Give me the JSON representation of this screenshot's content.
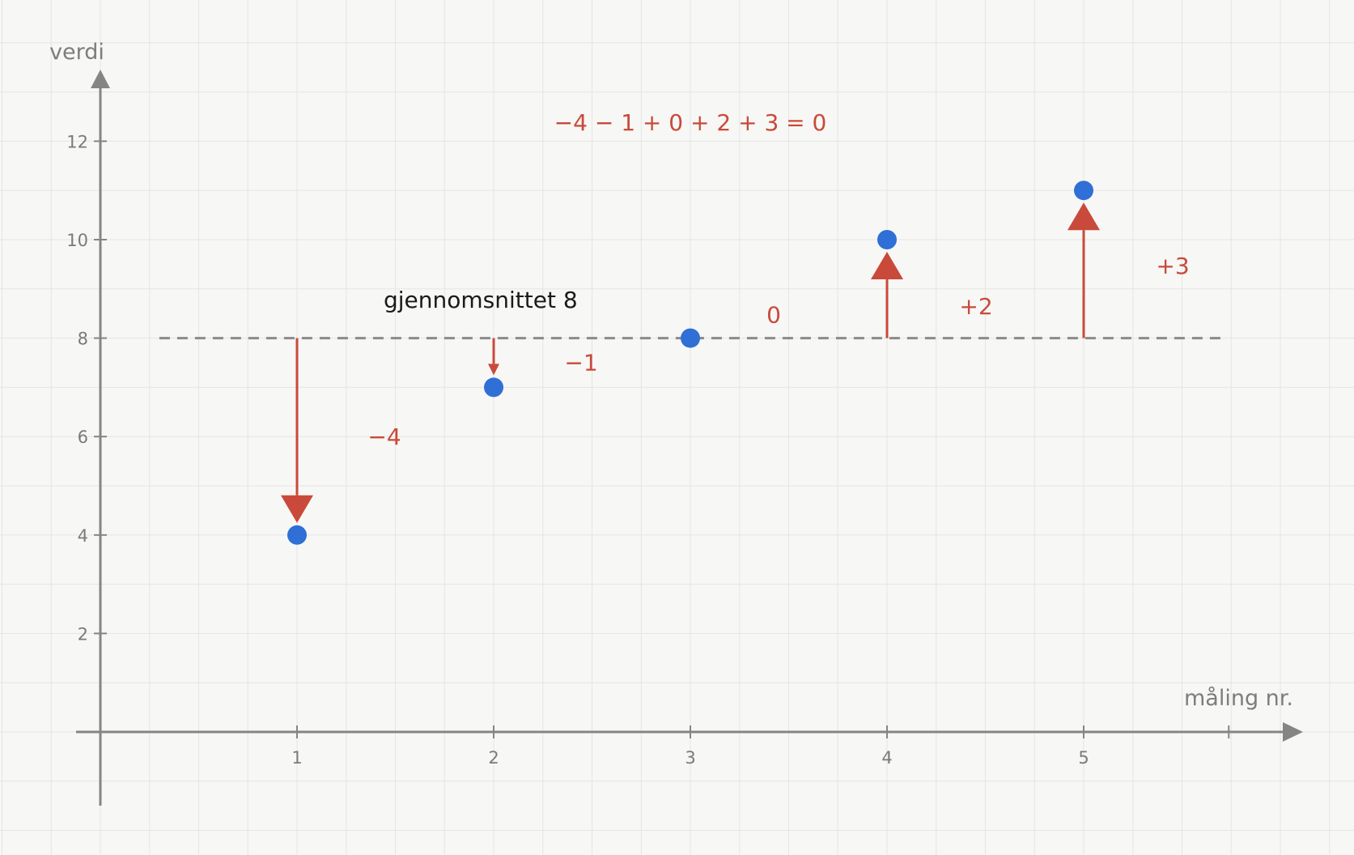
{
  "chart_data": {
    "type": "scatter",
    "x_axis_label": "måling nr.",
    "y_axis_label": "verdi",
    "x_ticks": [
      "1",
      "2",
      "3",
      "4",
      "5"
    ],
    "y_ticks": [
      "2",
      "4",
      "6",
      "8",
      "10",
      "12"
    ],
    "xlim": [
      -0.5,
      6.0
    ],
    "ylim": [
      -1.5,
      13.5
    ],
    "grid": true,
    "points": [
      {
        "x": 1,
        "y": 4
      },
      {
        "x": 2,
        "y": 7
      },
      {
        "x": 3,
        "y": 8
      },
      {
        "x": 4,
        "y": 10
      },
      {
        "x": 5,
        "y": 11
      }
    ],
    "mean": {
      "value": 8,
      "label": "gjennomsnittet 8"
    },
    "deviations": [
      {
        "x": 1,
        "value": -4,
        "label": "−4"
      },
      {
        "x": 2,
        "value": -1,
        "label": "−1"
      },
      {
        "x": 3,
        "value": 0,
        "label": "0"
      },
      {
        "x": 4,
        "value": 2,
        "label": "+2"
      },
      {
        "x": 5,
        "value": 3,
        "label": "+3"
      }
    ],
    "sum_annotation": "−4 − 1 + 0 + 2 + 3 = 0"
  },
  "colors": {
    "background": "#f7f7f5",
    "grid": "#e5e5e3",
    "axis": "#858585",
    "point": "#2f6fd6",
    "arrow": "#c94a3a",
    "mean_line": "#8a8a8a"
  }
}
